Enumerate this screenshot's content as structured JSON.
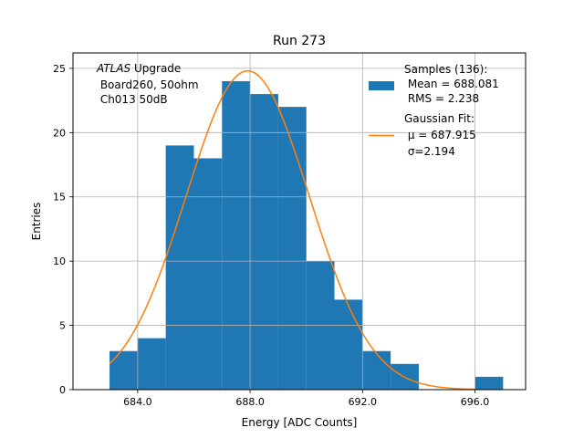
{
  "chart_data": {
    "type": "bar",
    "title": "Run 273",
    "xlabel": "Energy [ADC Counts]",
    "ylabel": "Entries",
    "xlim": [
      681.7,
      697.8
    ],
    "ylim": [
      0,
      26.2
    ],
    "xticks": [
      684,
      688,
      692,
      696
    ],
    "xtick_labels": [
      "684.0",
      "688.0",
      "692.0",
      "696.0"
    ],
    "yticks": [
      0,
      5,
      10,
      15,
      20,
      25
    ],
    "ytick_labels": [
      "0",
      "5",
      "10",
      "15",
      "20",
      "25"
    ],
    "grid": true,
    "bin_edges": [
      683,
      684,
      685,
      686,
      687,
      688,
      689,
      690,
      691,
      692,
      693,
      694,
      695,
      696,
      697
    ],
    "counts": [
      3,
      4,
      19,
      18,
      24,
      23,
      22,
      10,
      7,
      3,
      2,
      0,
      0,
      1
    ],
    "fit": {
      "type": "gaussian",
      "amplitude": 24.8,
      "mean": 687.915,
      "sigma": 2.194,
      "x_range": [
        683,
        696
      ]
    },
    "annotation": {
      "italic": "ATLAS",
      "lines": [
        " Upgrade",
        " Board260, 50ohm",
        " Ch013 50dB"
      ]
    },
    "legend": {
      "position": "top-right",
      "entries": [
        {
          "kind": "patch",
          "lines": [
            "Samples (136):",
            " Mean = 688.081",
            " RMS = 2.238"
          ]
        },
        {
          "kind": "line",
          "lines": [
            "Gaussian Fit:",
            " μ = 687.915",
            " σ=2.194"
          ]
        }
      ]
    },
    "colors": {
      "bars": "#1f77b4",
      "fit": "#ff7f0e",
      "grid": "#b0b0b0"
    }
  }
}
